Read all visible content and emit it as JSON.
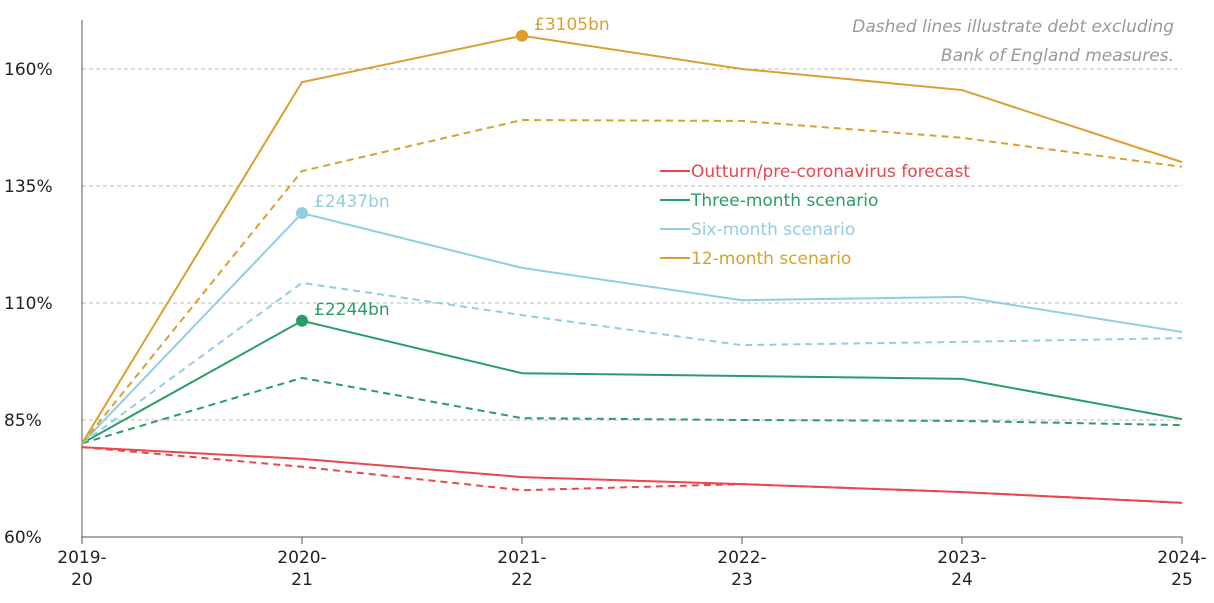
{
  "chart_data": {
    "type": "line",
    "note": [
      "Dashed lines illustrate debt excluding",
      "Bank of England measures."
    ],
    "categories": [
      "2019-20",
      "2020-21",
      "2021-22",
      "2022-23",
      "2023-24",
      "2024-25"
    ],
    "ylim": [
      60,
      170
    ],
    "yticks": [
      {
        "value": 60,
        "label": "60%"
      },
      {
        "value": 85,
        "label": "85%"
      },
      {
        "value": 110,
        "label": "110%"
      },
      {
        "value": 135,
        "label": "135%"
      },
      {
        "value": 160,
        "label": "160%"
      }
    ],
    "grid": true,
    "series": [
      {
        "name": "Outturn/pre-coronavirus forecast",
        "color": "#e8474c",
        "values": [
          79.2,
          76.7,
          72.8,
          71.3,
          69.6,
          67.3
        ],
        "dashed_values": [
          79.2,
          75.0,
          70.0,
          71.3,
          69.6,
          67.3
        ]
      },
      {
        "name": "Three-month scenario",
        "color": "#2a9d64",
        "values": [
          80,
          106.2,
          95.0,
          94.4,
          93.8,
          85.2
        ],
        "dashed_values": [
          80,
          94.0,
          85.4,
          85.0,
          84.8,
          83.9
        ],
        "highlight": {
          "index": 1,
          "label": "£2244bn"
        }
      },
      {
        "name": "Six-month scenario",
        "color": "#93cde0",
        "values": [
          80,
          129.2,
          117.5,
          110.6,
          111.3,
          103.8
        ],
        "dashed_values": [
          80,
          114.3,
          107.4,
          101.0,
          101.7,
          102.5
        ],
        "highlight": {
          "index": 1,
          "label": "£2437bn"
        }
      },
      {
        "name": "12-month scenario",
        "color": "#d9a030",
        "values": [
          80,
          157.2,
          167.1,
          160,
          155.5,
          140.1
        ],
        "dashed_values": [
          80,
          138.2,
          149.1,
          148.9,
          145.3,
          139.1
        ],
        "highlight": {
          "index": 2,
          "label": "£3105bn"
        }
      }
    ]
  }
}
